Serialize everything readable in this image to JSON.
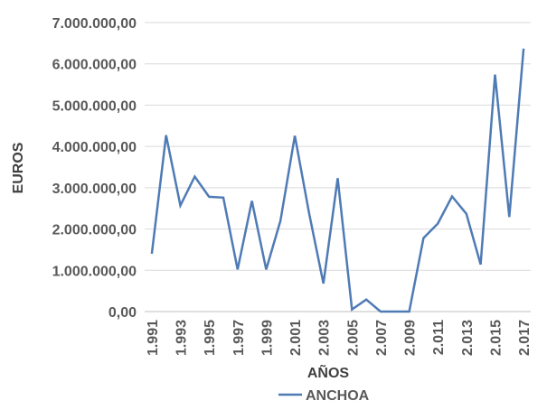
{
  "chart_data": {
    "type": "line",
    "xlabel": "AÑOS",
    "ylabel": "EUROS",
    "ylim": [
      0,
      7000000
    ],
    "y_ticks": [
      0,
      1000000,
      2000000,
      3000000,
      4000000,
      5000000,
      6000000,
      7000000
    ],
    "y_tick_labels": [
      "0,00",
      "1.000.000,00",
      "2.000.000,00",
      "3.000.000,00",
      "4.000.000,00",
      "5.000.000,00",
      "6.000.000,00",
      "7.000.000,00"
    ],
    "x": [
      1991,
      1992,
      1993,
      1994,
      1995,
      1996,
      1997,
      1998,
      1999,
      2000,
      2001,
      2002,
      2003,
      2004,
      2005,
      2006,
      2007,
      2008,
      2009,
      2010,
      2011,
      2012,
      2013,
      2014,
      2015,
      2016,
      2017
    ],
    "x_tick_labels": [
      "1.991",
      "1.993",
      "1.995",
      "1.997",
      "1.999",
      "2.001",
      "2.003",
      "2.005",
      "2.007",
      "2.009",
      "2.011",
      "2.013",
      "2.015",
      "2.017"
    ],
    "x_tick_values": [
      1991,
      1993,
      1995,
      1997,
      1999,
      2001,
      2003,
      2005,
      2007,
      2009,
      2011,
      2013,
      2015,
      2017
    ],
    "grid": true,
    "legend_position": "bottom",
    "series": [
      {
        "name": "ANCHOA",
        "color": "#4f7bb5",
        "values": [
          1400000,
          4270000,
          2570000,
          3270000,
          2780000,
          2760000,
          1020000,
          2680000,
          1020000,
          2200000,
          4260000,
          2380000,
          680000,
          3230000,
          50000,
          290000,
          0,
          0,
          0,
          1780000,
          2130000,
          2790000,
          2370000,
          1140000,
          5740000,
          2290000,
          6370000
        ]
      }
    ]
  }
}
